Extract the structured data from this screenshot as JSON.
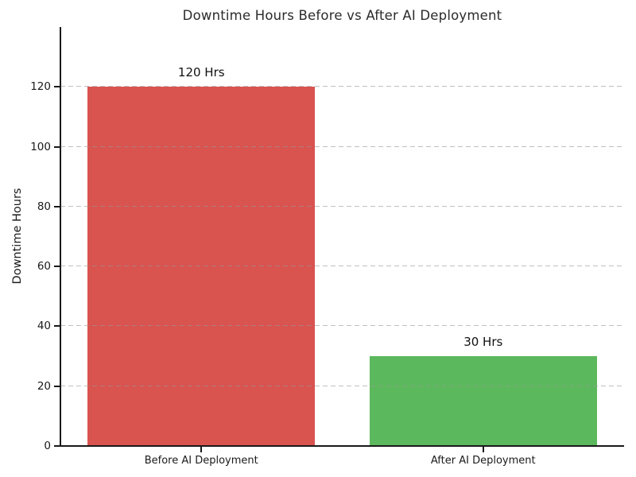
{
  "figure": {
    "background_color": "#ffffff"
  },
  "chart_data": {
    "type": "bar",
    "title": "Downtime Hours Before vs After AI Deployment",
    "categories": [
      "Before AI Deployment",
      "After AI Deployment"
    ],
    "values": [
      120,
      30
    ],
    "bar_labels": [
      "120 Hrs",
      "30 Hrs"
    ],
    "bar_colors": [
      "#d9534f",
      "#5cb85c"
    ],
    "xlabel": "",
    "ylabel": "Downtime Hours",
    "ylim": [
      0,
      140
    ],
    "yticks": [
      0,
      20,
      40,
      60,
      80,
      100,
      120
    ],
    "grid": {
      "axis": "y",
      "style": "dashed",
      "color": "#bbbbbb",
      "drawn_above_bars": true
    },
    "legend_position": "none",
    "text_color": "#1a1a1a",
    "spine_color": "#1a1a1a"
  }
}
